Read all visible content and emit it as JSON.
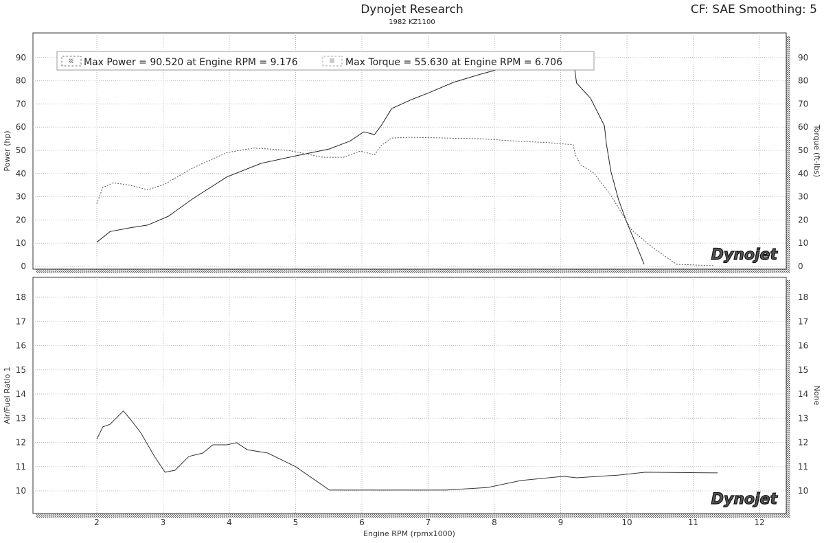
{
  "header": {
    "title": "Dynojet Research",
    "subtitle": "1982 KZ1100",
    "correction": "CF: SAE Smoothing: 5"
  },
  "colors": {
    "power": "#222222",
    "torque": "#555555",
    "afr": "#333333",
    "grid": "#bbbbbb"
  },
  "chart_data": [
    {
      "type": "line",
      "legend": [
        "Max Power = 90.520 at Engine RPM = 9.176",
        "Max Torque = 55.630 at Engine RPM = 6.706"
      ],
      "legend_position": "top-left",
      "ylabel": "Power (hp)",
      "y2label": "Torque (ft-lbs)",
      "ylim": [
        0,
        90
      ],
      "y2lim": [
        0,
        90
      ],
      "yticks": [
        0,
        10,
        20,
        30,
        40,
        50,
        60,
        70,
        80,
        90
      ],
      "xlim": [
        1,
        12.4
      ],
      "grid": true,
      "logo": "Dynojet",
      "series": [
        {
          "style": "solid",
          "axis": "left",
          "x": [
            2.0,
            2.2,
            2.5,
            2.77,
            3.08,
            3.44,
            3.96,
            4.48,
            5.0,
            5.51,
            5.82,
            6.03,
            6.19,
            6.29,
            6.45,
            6.76,
            7.02,
            7.38,
            7.79,
            8.1,
            8.6,
            9.176,
            9.21,
            9.24,
            9.45,
            9.66,
            9.69,
            9.76,
            9.87,
            9.99,
            10.12,
            10.26
          ],
          "y": [
            10.4,
            15,
            16.6,
            17.8,
            21.6,
            29,
            38.5,
            44.4,
            47.6,
            50.6,
            54,
            58,
            56.8,
            60.6,
            68,
            72,
            74.9,
            79.3,
            82.8,
            85.2,
            88,
            90.52,
            85.2,
            79,
            72.5,
            60.6,
            52.7,
            40.8,
            29,
            19.5,
            10.7,
            0.9
          ]
        },
        {
          "style": "dotted",
          "axis": "right",
          "x": [
            2.0,
            2.09,
            2.25,
            2.5,
            2.77,
            3.03,
            3.44,
            3.96,
            4.37,
            4.89,
            5.41,
            5.72,
            5.98,
            6.19,
            6.29,
            6.45,
            6.706,
            7.27,
            7.79,
            8.31,
            8.82,
            9.19,
            9.22,
            9.3,
            9.5,
            9.76,
            9.92,
            10.07,
            10.38,
            10.75,
            11.32
          ],
          "y": [
            27,
            34,
            36,
            35,
            33,
            35.5,
            42.3,
            49,
            51,
            50,
            47,
            47,
            49.7,
            48,
            52,
            55.3,
            55.63,
            55.3,
            55,
            54,
            53.3,
            52.4,
            48.2,
            43.8,
            40.2,
            30.5,
            23,
            15.7,
            8.3,
            0.9,
            0.3
          ]
        }
      ]
    },
    {
      "type": "line",
      "ylabel": "Air/Fuel Ratio 1",
      "y2label": "None",
      "ylim": [
        9.06,
        18.8
      ],
      "yticks": [
        10,
        11,
        12,
        13,
        14,
        15,
        16,
        17,
        18
      ],
      "xlabel": "Engine RPM (rpmx1000)",
      "xticks": [
        2,
        3,
        4,
        5,
        6,
        7,
        8,
        9,
        10,
        11,
        12
      ],
      "xlim": [
        1,
        12.4
      ],
      "grid": true,
      "logo": "Dynojet",
      "series": [
        {
          "style": "solid",
          "x": [
            2.0,
            2.09,
            2.2,
            2.4,
            2.5,
            2.66,
            2.87,
            3.03,
            3.18,
            3.39,
            3.6,
            3.75,
            3.96,
            4.11,
            4.27,
            4.58,
            5.0,
            5.3,
            5.51,
            6.24,
            7.27,
            7.9,
            8.41,
            9.04,
            9.24,
            9.87,
            10.28,
            11.37
          ],
          "y": [
            12.13,
            12.64,
            12.75,
            13.3,
            12.98,
            12.41,
            11.42,
            10.77,
            10.85,
            11.42,
            11.56,
            11.9,
            11.9,
            11.99,
            11.7,
            11.56,
            11.0,
            10.43,
            10.03,
            10.03,
            10.03,
            10.14,
            10.43,
            10.6,
            10.54,
            10.65,
            10.77,
            10.74
          ]
        }
      ]
    }
  ]
}
